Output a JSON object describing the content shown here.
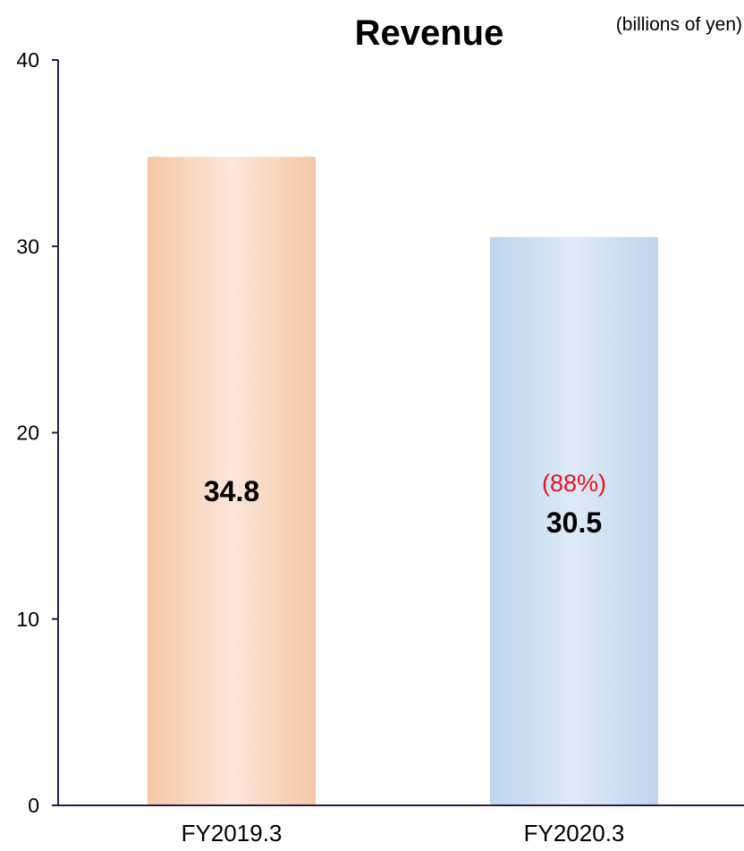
{
  "chart_data": {
    "type": "bar",
    "title": "Revenue",
    "unit_note": "(billions of yen)",
    "categories": [
      "FY2019.3",
      "FY2020.3"
    ],
    "values": [
      34.8,
      30.5
    ],
    "value_labels": [
      "34.8",
      "30.5"
    ],
    "ratio_labels": [
      "",
      "(88%)"
    ],
    "ylim": [
      0,
      40
    ],
    "yticks": [
      "0",
      "10",
      "20",
      "30",
      "40"
    ],
    "grid": false,
    "legend": "none",
    "colors": {
      "bar_1_edge": "#f6c7a6",
      "bar_1_center": "#fce6d8",
      "bar_2_edge": "#bdd6ee",
      "bar_2_center": "#deeaf6",
      "axis": "#2e1a47",
      "ratio_text": "#e8141b"
    }
  }
}
